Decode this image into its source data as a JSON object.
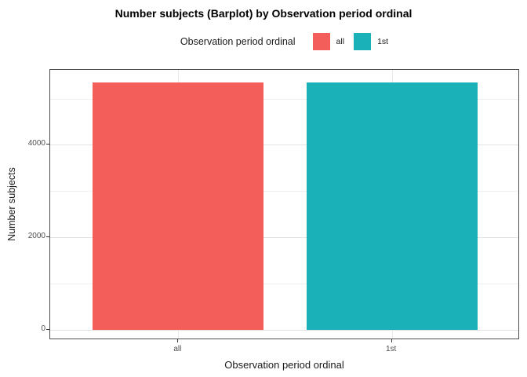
{
  "chart_data": {
    "type": "bar",
    "title": "Number subjects (Barplot) by Observation period ordinal",
    "xlabel": "Observation period ordinal",
    "ylabel": "Number subjects",
    "categories": [
      "all",
      "1st"
    ],
    "values": [
      5350,
      5350
    ],
    "colors": [
      "#F35E5A",
      "#1AB2B8"
    ],
    "yticks": [
      0,
      2000,
      4000
    ],
    "yticks_minor": [
      1000,
      3000,
      5000
    ],
    "ylim": [
      -221,
      5622
    ],
    "grid": "on",
    "bar_width_fraction": 0.3636,
    "legend": {
      "title": "Observation period ordinal",
      "position": "top",
      "entries": [
        {
          "label": "all",
          "color": "#F35E5A"
        },
        {
          "label": "1st",
          "color": "#1AB2B8"
        }
      ]
    }
  }
}
